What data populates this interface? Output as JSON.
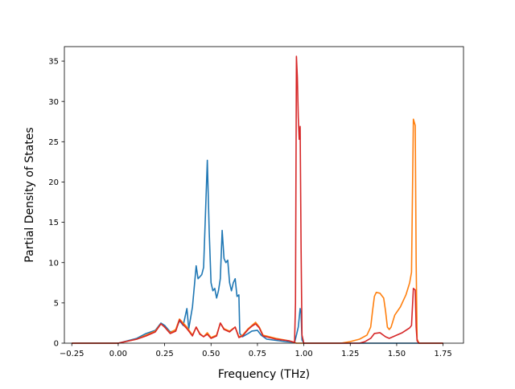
{
  "chart_data": {
    "type": "line",
    "title": "",
    "xlabel": "Frequency (THz)",
    "ylabel": "Partial Density of States",
    "xlim": [
      -0.29,
      1.86
    ],
    "ylim": [
      0,
      36.8
    ],
    "xticks": [
      -0.25,
      0.0,
      0.25,
      0.5,
      0.75,
      1.0,
      1.25,
      1.5,
      1.75
    ],
    "xtick_labels": [
      "−0.25",
      "0.00",
      "0.25",
      "0.50",
      "0.75",
      "1.00",
      "1.25",
      "1.50",
      "1.75"
    ],
    "yticks": [
      0,
      5,
      10,
      15,
      20,
      25,
      30,
      35
    ],
    "ytick_labels": [
      "0",
      "5",
      "10",
      "15",
      "20",
      "25",
      "30",
      "35"
    ],
    "grid": false,
    "legend": false,
    "series": [
      {
        "color": "#1f77b4",
        "points": [
          [
            -0.25,
            0
          ],
          [
            0.0,
            0
          ],
          [
            0.1,
            0.6
          ],
          [
            0.15,
            1.2
          ],
          [
            0.2,
            1.6
          ],
          [
            0.23,
            2.5
          ],
          [
            0.25,
            2.2
          ],
          [
            0.28,
            1.4
          ],
          [
            0.31,
            1.6
          ],
          [
            0.33,
            2.8
          ],
          [
            0.35,
            2.2
          ],
          [
            0.37,
            4.3
          ],
          [
            0.38,
            1.8
          ],
          [
            0.4,
            4.5
          ],
          [
            0.42,
            9.6
          ],
          [
            0.43,
            8.0
          ],
          [
            0.45,
            8.5
          ],
          [
            0.46,
            9.4
          ],
          [
            0.47,
            16.0
          ],
          [
            0.48,
            22.7
          ],
          [
            0.49,
            14.0
          ],
          [
            0.5,
            7.5
          ],
          [
            0.51,
            6.5
          ],
          [
            0.52,
            6.8
          ],
          [
            0.53,
            5.6
          ],
          [
            0.54,
            6.5
          ],
          [
            0.55,
            8.0
          ],
          [
            0.56,
            14.0
          ],
          [
            0.57,
            10.5
          ],
          [
            0.58,
            10.0
          ],
          [
            0.59,
            10.3
          ],
          [
            0.6,
            7.5
          ],
          [
            0.61,
            6.5
          ],
          [
            0.62,
            7.5
          ],
          [
            0.63,
            8.0
          ],
          [
            0.64,
            5.8
          ],
          [
            0.65,
            6.0
          ],
          [
            0.655,
            1.2
          ],
          [
            0.67,
            0.8
          ],
          [
            0.7,
            1.2
          ],
          [
            0.72,
            1.5
          ],
          [
            0.75,
            1.6
          ],
          [
            0.77,
            1.0
          ],
          [
            0.8,
            0.5
          ],
          [
            0.9,
            0.2
          ],
          [
            0.95,
            0.1
          ],
          [
            0.96,
            1.0
          ],
          [
            0.97,
            2.0
          ],
          [
            0.98,
            4.3
          ],
          [
            0.985,
            3.8
          ],
          [
            0.99,
            0.4
          ],
          [
            1.0,
            0
          ],
          [
            1.75,
            0
          ]
        ]
      },
      {
        "color": "#ff7f0e",
        "points": [
          [
            -0.25,
            0
          ],
          [
            0.0,
            0
          ],
          [
            0.1,
            0.5
          ],
          [
            0.15,
            1.0
          ],
          [
            0.2,
            1.5
          ],
          [
            0.23,
            2.4
          ],
          [
            0.25,
            2.0
          ],
          [
            0.28,
            1.3
          ],
          [
            0.31,
            1.7
          ],
          [
            0.33,
            3.0
          ],
          [
            0.35,
            2.5
          ],
          [
            0.37,
            2.0
          ],
          [
            0.4,
            1.0
          ],
          [
            0.42,
            2.0
          ],
          [
            0.44,
            1.2
          ],
          [
            0.46,
            0.8
          ],
          [
            0.48,
            1.3
          ],
          [
            0.5,
            0.7
          ],
          [
            0.53,
            1.0
          ],
          [
            0.55,
            2.5
          ],
          [
            0.57,
            1.8
          ],
          [
            0.6,
            1.5
          ],
          [
            0.63,
            2.0
          ],
          [
            0.65,
            0.8
          ],
          [
            0.67,
            1.0
          ],
          [
            0.7,
            1.8
          ],
          [
            0.72,
            2.2
          ],
          [
            0.74,
            2.6
          ],
          [
            0.76,
            2.0
          ],
          [
            0.78,
            1.0
          ],
          [
            0.85,
            0.6
          ],
          [
            0.92,
            0.3
          ],
          [
            0.95,
            0.1
          ],
          [
            0.96,
            0
          ],
          [
            1.2,
            0
          ],
          [
            1.25,
            0.2
          ],
          [
            1.3,
            0.5
          ],
          [
            1.34,
            1.0
          ],
          [
            1.36,
            2.0
          ],
          [
            1.37,
            4.0
          ],
          [
            1.38,
            5.8
          ],
          [
            1.39,
            6.3
          ],
          [
            1.41,
            6.2
          ],
          [
            1.43,
            5.6
          ],
          [
            1.44,
            4.0
          ],
          [
            1.45,
            2.0
          ],
          [
            1.46,
            1.7
          ],
          [
            1.47,
            2.0
          ],
          [
            1.49,
            3.5
          ],
          [
            1.52,
            4.5
          ],
          [
            1.55,
            6.0
          ],
          [
            1.57,
            7.5
          ],
          [
            1.58,
            8.8
          ],
          [
            1.59,
            27.8
          ],
          [
            1.6,
            27.0
          ],
          [
            1.605,
            10.0
          ],
          [
            1.61,
            0.5
          ],
          [
            1.62,
            0
          ],
          [
            1.75,
            0
          ]
        ]
      },
      {
        "color": "#d62728",
        "points": [
          [
            -0.25,
            0
          ],
          [
            0.0,
            0
          ],
          [
            0.1,
            0.5
          ],
          [
            0.15,
            0.9
          ],
          [
            0.2,
            1.4
          ],
          [
            0.23,
            2.4
          ],
          [
            0.25,
            2.0
          ],
          [
            0.28,
            1.2
          ],
          [
            0.31,
            1.5
          ],
          [
            0.33,
            2.9
          ],
          [
            0.35,
            2.3
          ],
          [
            0.37,
            1.8
          ],
          [
            0.4,
            0.9
          ],
          [
            0.42,
            2.0
          ],
          [
            0.44,
            1.1
          ],
          [
            0.46,
            0.8
          ],
          [
            0.48,
            1.1
          ],
          [
            0.5,
            0.6
          ],
          [
            0.53,
            0.9
          ],
          [
            0.55,
            2.5
          ],
          [
            0.57,
            1.7
          ],
          [
            0.6,
            1.4
          ],
          [
            0.63,
            2.0
          ],
          [
            0.65,
            0.7
          ],
          [
            0.67,
            0.9
          ],
          [
            0.7,
            1.7
          ],
          [
            0.72,
            2.1
          ],
          [
            0.74,
            2.4
          ],
          [
            0.76,
            1.9
          ],
          [
            0.78,
            0.9
          ],
          [
            0.85,
            0.5
          ],
          [
            0.92,
            0.3
          ],
          [
            0.95,
            0.1
          ],
          [
            0.955,
            5.0
          ],
          [
            0.96,
            35.6
          ],
          [
            0.965,
            33.0
          ],
          [
            0.97,
            28.0
          ],
          [
            0.975,
            25.3
          ],
          [
            0.98,
            26.9
          ],
          [
            0.985,
            12.0
          ],
          [
            0.99,
            1.0
          ],
          [
            1.0,
            0
          ],
          [
            1.3,
            0
          ],
          [
            1.33,
            0.2
          ],
          [
            1.36,
            0.6
          ],
          [
            1.38,
            1.2
          ],
          [
            1.41,
            1.3
          ],
          [
            1.44,
            0.8
          ],
          [
            1.46,
            0.6
          ],
          [
            1.49,
            0.9
          ],
          [
            1.53,
            1.3
          ],
          [
            1.57,
            1.9
          ],
          [
            1.58,
            2.2
          ],
          [
            1.59,
            6.8
          ],
          [
            1.6,
            6.6
          ],
          [
            1.605,
            2.0
          ],
          [
            1.61,
            0.3
          ],
          [
            1.62,
            0
          ],
          [
            1.75,
            0
          ]
        ]
      }
    ]
  }
}
